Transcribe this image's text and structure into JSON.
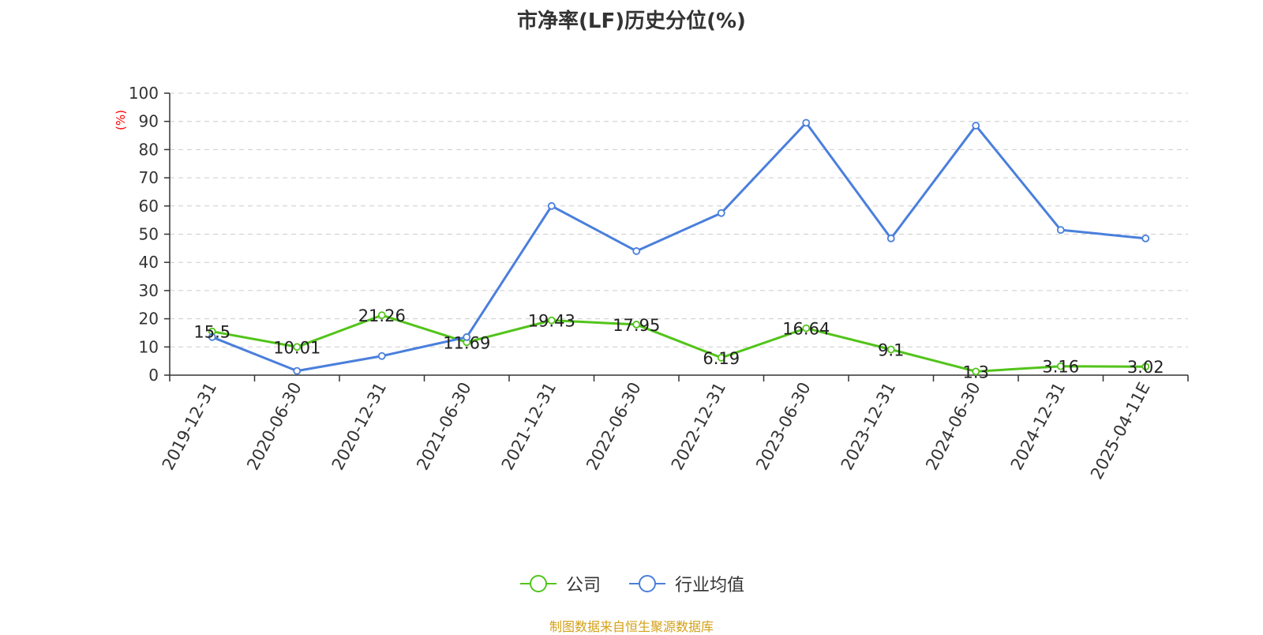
{
  "chart_data": {
    "type": "line",
    "title": "市净率(LF)历史分位(%)",
    "ylabel": "(%)",
    "ylim": [
      0,
      100
    ],
    "yticks": [
      "0",
      "10",
      "20",
      "30",
      "40",
      "50",
      "60",
      "70",
      "80",
      "90",
      "100"
    ],
    "grid": true,
    "legend_position": "bottom",
    "categories": [
      "2019-12-31",
      "2020-06-30",
      "2020-12-31",
      "2021-06-30",
      "2021-12-31",
      "2022-06-30",
      "2022-12-31",
      "2023-06-30",
      "2023-12-31",
      "2024-06-30",
      "2024-12-31",
      "2025-04-11E"
    ],
    "series": [
      {
        "name": "公司",
        "color": "#52c41a",
        "values": [
          15.5,
          10.01,
          21.26,
          11.69,
          19.43,
          17.95,
          6.19,
          16.64,
          9.1,
          1.3,
          3.16,
          3.02
        ],
        "labels": [
          "15.5",
          "10.01",
          "21.26",
          "11.69",
          "19.43",
          "17.95",
          "6.19",
          "16.64",
          "9.1",
          "1.3",
          "3.16",
          "3.02"
        ]
      },
      {
        "name": "行业均值",
        "color": "#4a7fdc",
        "values": [
          13.5,
          1.5,
          6.8,
          13.5,
          60,
          44,
          57.5,
          89.5,
          48.5,
          88.5,
          51.5,
          48.5
        ]
      }
    ]
  },
  "source": "制图数据来自恒生聚源数据库",
  "colors": {
    "axis": "#333333",
    "grid": "#cccccc",
    "ylabel": "#ff0000",
    "source": "#d4a017"
  }
}
